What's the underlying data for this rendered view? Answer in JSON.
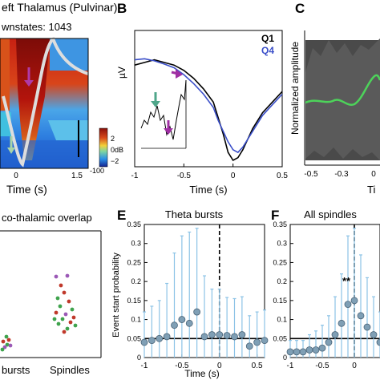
{
  "panels": {
    "A": {
      "title": "eft Thalamus (Pulvinar)",
      "subtitle": "wnstates: 1043",
      "xlabel": "Time (s)",
      "xticks": [
        "0",
        "1.5"
      ],
      "colorbar_ticks": [
        "2",
        "0dB",
        "−2",
        "-100"
      ]
    },
    "B": {
      "letter": "B",
      "ylabel": "µV",
      "xlabel": "Time (s)",
      "xticks": [
        "-1",
        "-0.5",
        "0",
        "0.5"
      ]
    },
    "C": {
      "letter": "C",
      "ylabel": "Normalized amplitude",
      "xlabel": "Ti",
      "xticks": [
        "-0.5",
        "-0.3",
        "0"
      ]
    },
    "D": {
      "title": "co-thalamic overlap",
      "categories": [
        "bursts",
        "Spindles"
      ]
    },
    "E": {
      "letter": "E",
      "title": "Theta bursts",
      "ylabel": "Event start probability",
      "xlabel": "Time (s)",
      "xticks": [
        "-1",
        "-0.5",
        "0",
        "0.5"
      ],
      "yticks": [
        "0",
        "0.05",
        "0.1",
        "0.15",
        "0.2",
        "0.25",
        "0.3",
        "0.35"
      ]
    },
    "F": {
      "letter": "F",
      "title": "All spindles",
      "xticks": [
        "-1",
        "-0.5",
        "0"
      ],
      "yticks": [
        "0",
        "0.05",
        "0.1",
        "0.15",
        "0.2",
        "0.25",
        "0.3",
        "0.35"
      ],
      "annotation": "**"
    }
  },
  "colors": {
    "marker": "#7f9fb5",
    "errorbar": "#8cc3e6",
    "q1": "#000000",
    "q4": "#3b4fc9",
    "green": "#4dd35a",
    "heat_red": "#c01b10",
    "heat_blue": "#1a5fd6"
  },
  "chart_data": [
    {
      "type": "line",
      "panel": "B",
      "x": [
        -1,
        -0.9,
        -0.8,
        -0.7,
        -0.6,
        -0.5,
        -0.4,
        -0.3,
        -0.2,
        -0.15,
        -0.1,
        -0.05,
        0,
        0.05,
        0.1,
        0.2,
        0.3,
        0.4,
        0.5
      ],
      "series": [
        {
          "name": "Q1",
          "values": [
            0.8,
            0.85,
            0.9,
            0.85,
            0.8,
            0.7,
            0.55,
            0.35,
            0.1,
            -0.2,
            -0.5,
            -0.85,
            -1.0,
            -0.95,
            -0.8,
            -0.4,
            -0.1,
            0.1,
            0.3
          ]
        },
        {
          "name": "Q4",
          "values": [
            0.9,
            0.92,
            0.88,
            0.82,
            0.75,
            0.62,
            0.45,
            0.25,
            0.0,
            -0.25,
            -0.45,
            -0.65,
            -0.8,
            -0.85,
            -0.75,
            -0.45,
            -0.15,
            0.05,
            0.25
          ]
        }
      ],
      "xlim": [
        -1,
        0.5
      ]
    },
    {
      "type": "scatter",
      "panel": "E",
      "x": [
        -1,
        -0.9,
        -0.8,
        -0.7,
        -0.6,
        -0.5,
        -0.4,
        -0.3,
        -0.2,
        -0.1,
        0,
        0.1,
        0.2,
        0.3,
        0.4,
        0.5,
        0.6
      ],
      "values": [
        0.04,
        0.045,
        0.05,
        0.055,
        0.085,
        0.1,
        0.09,
        0.12,
        0.055,
        0.06,
        0.06,
        0.058,
        0.055,
        0.06,
        0.03,
        0.04,
        0.045
      ],
      "errors": [
        0.08,
        0.09,
        0.1,
        0.14,
        0.19,
        0.22,
        0.24,
        0.22,
        0.16,
        0.12,
        0.12,
        0.1,
        0.1,
        0.1,
        0.08,
        0.08,
        0.08
      ],
      "reference_line": 0.05,
      "vline": 0,
      "xlim": [
        -1,
        0.6
      ],
      "ylim": [
        0,
        0.35
      ]
    },
    {
      "type": "scatter",
      "panel": "F",
      "x": [
        -1,
        -0.9,
        -0.8,
        -0.7,
        -0.6,
        -0.5,
        -0.4,
        -0.3,
        -0.2,
        -0.1,
        0,
        0.1,
        0.2,
        0.3,
        0.4
      ],
      "values": [
        0.015,
        0.015,
        0.015,
        0.02,
        0.02,
        0.025,
        0.04,
        0.06,
        0.09,
        0.14,
        0.15,
        0.11,
        0.08,
        0.06,
        0.04
      ],
      "errors": [
        0.03,
        0.03,
        0.03,
        0.04,
        0.05,
        0.06,
        0.07,
        0.1,
        0.13,
        0.18,
        0.19,
        0.16,
        0.13,
        0.1,
        0.08
      ],
      "reference_line": 0.05,
      "vline": 0,
      "xlim": [
        -1,
        0.4
      ],
      "ylim": [
        0,
        0.35
      ]
    }
  ]
}
